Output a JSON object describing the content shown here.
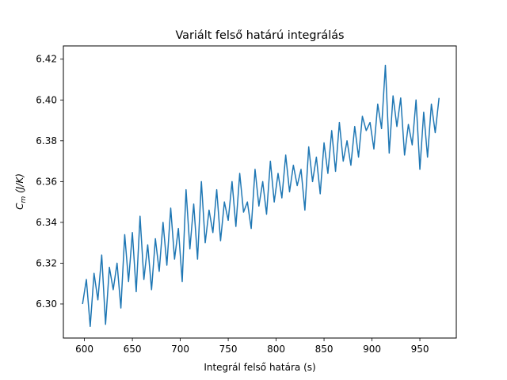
{
  "chart_data": {
    "type": "line",
    "title": "Variált felső határú integrálás",
    "xlabel": "Integrál felső határa (s)",
    "ylabel_main": "C",
    "ylabel_sub": "m",
    "ylabel_unit": " (J/K)",
    "xlim": [
      578,
      988
    ],
    "ylim": [
      6.2833,
      6.4265
    ],
    "xticks": [
      600,
      650,
      700,
      750,
      800,
      850,
      900,
      950
    ],
    "xtick_labels": [
      "600",
      "650",
      "700",
      "750",
      "800",
      "850",
      "900",
      "950"
    ],
    "yticks": [
      6.3,
      6.32,
      6.34,
      6.36,
      6.38,
      6.4,
      6.42
    ],
    "ytick_labels": [
      "6.30",
      "6.32",
      "6.34",
      "6.36",
      "6.38",
      "6.40",
      "6.42"
    ],
    "grid": false,
    "series": [
      {
        "color": "#1f77b4",
        "x": [
          598,
          602,
          606,
          610,
          614,
          618,
          622,
          626,
          630,
          634,
          638,
          642,
          646,
          650,
          654,
          658,
          662,
          666,
          670,
          674,
          678,
          682,
          686,
          690,
          694,
          698,
          702,
          706,
          710,
          714,
          718,
          722,
          726,
          730,
          734,
          738,
          742,
          746,
          750,
          754,
          758,
          762,
          766,
          770,
          774,
          778,
          782,
          786,
          790,
          794,
          798,
          802,
          806,
          810,
          814,
          818,
          822,
          826,
          830,
          834,
          838,
          842,
          846,
          850,
          854,
          858,
          862,
          866,
          870,
          874,
          878,
          882,
          886,
          890,
          894,
          898,
          902,
          906,
          910,
          914,
          918,
          922,
          926,
          930,
          934,
          938,
          942,
          946,
          950,
          954,
          958,
          962,
          966,
          970
        ],
        "y": [
          6.3,
          6.312,
          6.289,
          6.315,
          6.302,
          6.324,
          6.29,
          6.318,
          6.307,
          6.32,
          6.298,
          6.334,
          6.311,
          6.335,
          6.306,
          6.343,
          6.312,
          6.329,
          6.307,
          6.332,
          6.316,
          6.34,
          6.319,
          6.347,
          6.322,
          6.337,
          6.311,
          6.356,
          6.327,
          6.349,
          6.322,
          6.36,
          6.33,
          6.346,
          6.335,
          6.356,
          6.331,
          6.35,
          6.341,
          6.36,
          6.338,
          6.364,
          6.345,
          6.35,
          6.337,
          6.366,
          6.348,
          6.36,
          6.344,
          6.37,
          6.35,
          6.364,
          6.352,
          6.373,
          6.355,
          6.368,
          6.358,
          6.366,
          6.346,
          6.377,
          6.36,
          6.372,
          6.354,
          6.379,
          6.364,
          6.385,
          6.365,
          6.389,
          6.37,
          6.38,
          6.368,
          6.387,
          6.372,
          6.392,
          6.385,
          6.389,
          6.376,
          6.398,
          6.386,
          6.417,
          6.374,
          6.402,
          6.387,
          6.401,
          6.373,
          6.388,
          6.378,
          6.4,
          6.366,
          6.394,
          6.372,
          6.398,
          6.384,
          6.401
        ]
      }
    ]
  }
}
